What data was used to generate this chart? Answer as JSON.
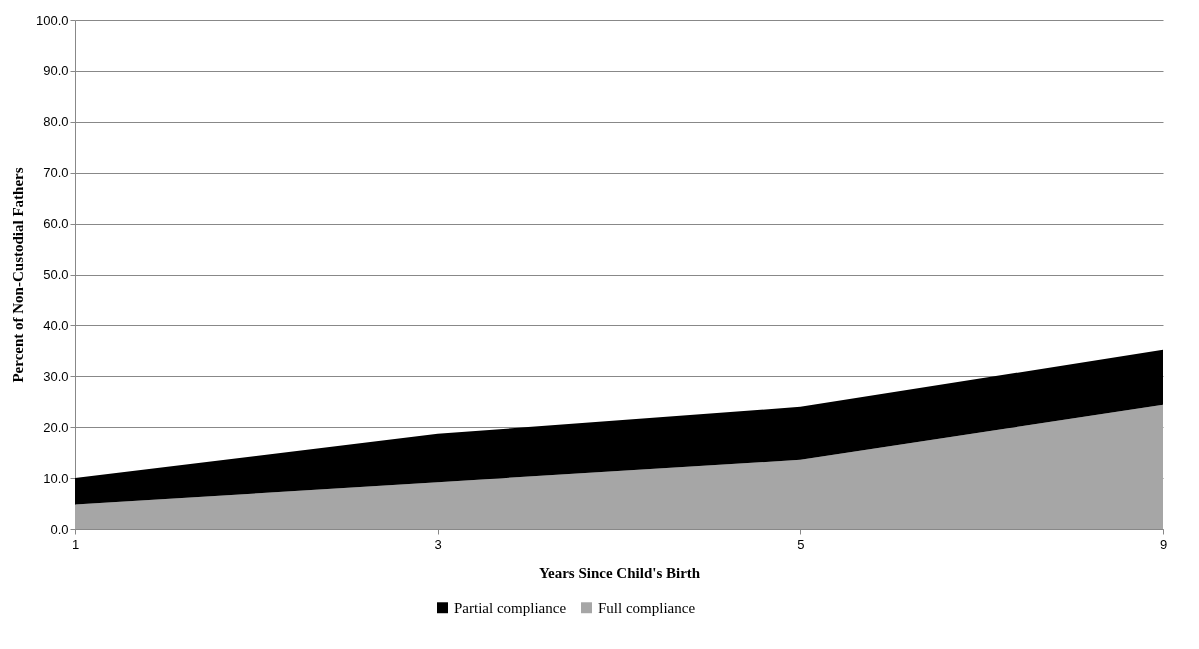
{
  "chart_data": {
    "type": "area",
    "stacked": true,
    "xlabel": "Years Since Child's Birth",
    "ylabel": "Percent of Non-Custodial Fathers",
    "categories": [
      "1",
      "3",
      "5",
      "9"
    ],
    "series": [
      {
        "name": "Full compliance",
        "color": "#a6a6a6",
        "values": [
          4.8,
          9.2,
          13.6,
          24.4
        ]
      },
      {
        "name": "Partial compliance",
        "color": "#000000",
        "values": [
          5.2,
          9.5,
          10.4,
          10.8
        ]
      }
    ],
    "ylim": [
      0,
      100
    ],
    "yticks": [
      {
        "value": 0,
        "label": "0.0"
      },
      {
        "value": 10,
        "label": "10.0"
      },
      {
        "value": 20,
        "label": "20.0"
      },
      {
        "value": 30,
        "label": "30.0"
      },
      {
        "value": 40,
        "label": "40.0"
      },
      {
        "value": 50,
        "label": "50.0"
      },
      {
        "value": 60,
        "label": "60.0"
      },
      {
        "value": 70,
        "label": "70.0"
      },
      {
        "value": 80,
        "label": "80.0"
      },
      {
        "value": 90,
        "label": "90.0"
      },
      {
        "value": 100,
        "label": "100.0"
      }
    ],
    "grid": "y",
    "legend": "bottom"
  }
}
